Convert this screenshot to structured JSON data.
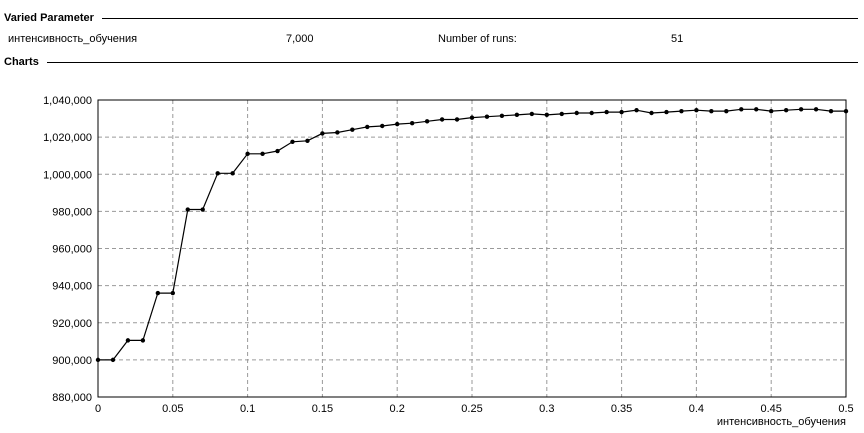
{
  "varied_parameter": {
    "title": "Varied Parameter",
    "param_name": "интенсивность_обучения",
    "param_value": "7,000",
    "runs_label": "Number of runs:",
    "runs_value": "51"
  },
  "charts_section": {
    "title": "Charts"
  },
  "chart_data": {
    "type": "line",
    "title": "",
    "xlabel": "интенсивность_обучения",
    "ylabel": "",
    "xlim": [
      0,
      0.5
    ],
    "ylim": [
      880000,
      1040000
    ],
    "grid": true,
    "x_ticks": [
      "0",
      "0.05",
      "0.1",
      "0.15",
      "0.2",
      "0.25",
      "0.3",
      "0.35",
      "0.4",
      "0.45",
      "0.5"
    ],
    "y_ticks": [
      "880,000",
      "900,000",
      "920,000",
      "940,000",
      "960,000",
      "980,000",
      "1,000,000",
      "1,020,000",
      "1,040,000"
    ],
    "series": [
      {
        "x": [
          0,
          0.01,
          0.02,
          0.03,
          0.04,
          0.05,
          0.06,
          0.07,
          0.08,
          0.09,
          0.1,
          0.11,
          0.12,
          0.13,
          0.14,
          0.15,
          0.16,
          0.17,
          0.18,
          0.19,
          0.2,
          0.21,
          0.22,
          0.23,
          0.24,
          0.25,
          0.26,
          0.27,
          0.28,
          0.29,
          0.3,
          0.31,
          0.32,
          0.33,
          0.34,
          0.35,
          0.36,
          0.37,
          0.38,
          0.39,
          0.4,
          0.41,
          0.42,
          0.43,
          0.44,
          0.45,
          0.46,
          0.47,
          0.48,
          0.49,
          0.5
        ],
        "values": [
          900000,
          900000,
          910500,
          910500,
          936000,
          936000,
          981000,
          981000,
          1000500,
          1000500,
          1011000,
          1011000,
          1012500,
          1017500,
          1018000,
          1022000,
          1022500,
          1024000,
          1025500,
          1026000,
          1027000,
          1027500,
          1028500,
          1029500,
          1029500,
          1030500,
          1031000,
          1031500,
          1032000,
          1032500,
          1032000,
          1032500,
          1033000,
          1033000,
          1033500,
          1033500,
          1034500,
          1033000,
          1033500,
          1034000,
          1034500,
          1034000,
          1034000,
          1035000,
          1035000,
          1034000,
          1034500,
          1035000,
          1035000,
          1034000,
          1034000
        ]
      }
    ],
    "color": "#000000",
    "grid_color": "#9a9a9a"
  }
}
